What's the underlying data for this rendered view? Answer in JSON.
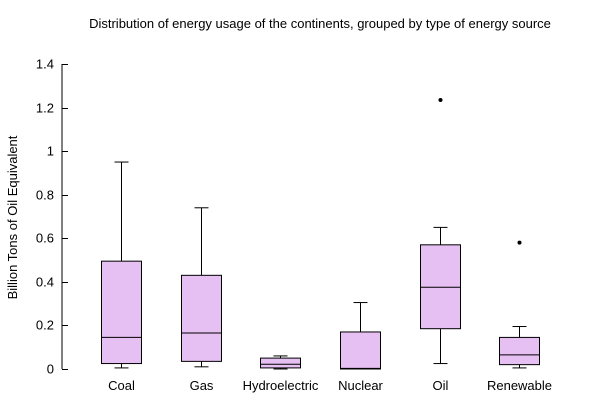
{
  "chart_data": {
    "type": "boxplot",
    "title": "Distribution of energy usage of the continents, grouped by type of energy source",
    "xlabel": "",
    "ylabel": "Billion Tons of Oil Equivalent",
    "ylim": [
      0,
      1.4
    ],
    "yticks": [
      0,
      0.2,
      0.4,
      0.6,
      0.8,
      1,
      1.2,
      1.4
    ],
    "ytick_labels": [
      "0",
      "0.2",
      "0.4",
      "0.6",
      "0.8",
      "1",
      "1.2",
      "1.4"
    ],
    "categories": [
      "Coal",
      "Gas",
      "Hydroelectric",
      "Nuclear",
      "Oil",
      "Renewable"
    ],
    "box_fill": "#e6c0f2",
    "box_stroke": "#000000",
    "boxes": [
      {
        "category": "Coal",
        "whisker_low": 0.005,
        "q1": 0.025,
        "median": 0.145,
        "q3": 0.495,
        "whisker_high": 0.95,
        "outliers": []
      },
      {
        "category": "Gas",
        "whisker_low": 0.01,
        "q1": 0.035,
        "median": 0.165,
        "q3": 0.43,
        "whisker_high": 0.74,
        "outliers": []
      },
      {
        "category": "Hydroelectric",
        "whisker_low": 0.0,
        "q1": 0.005,
        "median": 0.022,
        "q3": 0.05,
        "whisker_high": 0.06,
        "outliers": []
      },
      {
        "category": "Nuclear",
        "whisker_low": 0.0,
        "q1": 0.0,
        "median": 0.003,
        "q3": 0.17,
        "whisker_high": 0.305,
        "outliers": []
      },
      {
        "category": "Oil",
        "whisker_low": 0.025,
        "q1": 0.185,
        "median": 0.375,
        "q3": 0.57,
        "whisker_high": 0.65,
        "outliers": [
          1.235
        ]
      },
      {
        "category": "Renewable",
        "whisker_low": 0.005,
        "q1": 0.02,
        "median": 0.065,
        "q3": 0.145,
        "whisker_high": 0.195,
        "outliers": [
          0.58
        ]
      }
    ],
    "grid": false,
    "legend": "none"
  }
}
